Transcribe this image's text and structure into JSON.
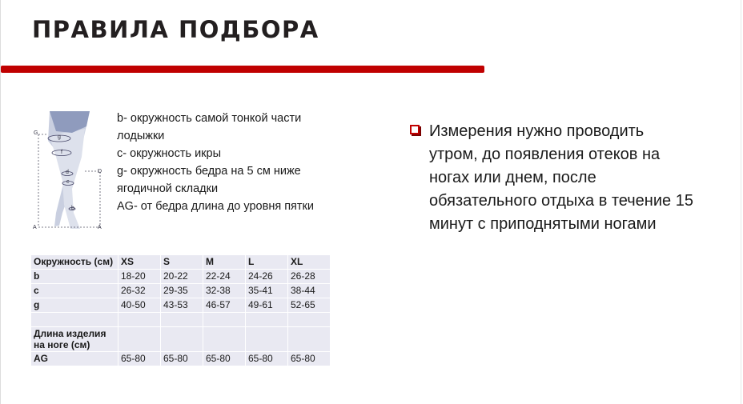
{
  "title": "ПРАВИЛА ПОДБОРА",
  "colors": {
    "accent": "#c00000",
    "table_bg": "#e9e9f2"
  },
  "figure": {
    "labels": [
      "G",
      "g",
      "f",
      "d",
      "D",
      "c",
      "b",
      "A",
      "A"
    ]
  },
  "legend": [
    "b- окружность самой тонкой части",
    "лодыжки",
    "c- окружность икры",
    "g- окружность бедра на 5 см ниже",
    "ягодичной складки",
    "AG- от бедра длина до уровня пятки"
  ],
  "note": {
    "icon": "square-bullet-icon",
    "lines": [
      "Измерения нужно проводить",
      "утром, до появления отеков на",
      "ногах или днем, после",
      "обязательного отдыха в течение 15",
      "минут с приподнятыми ногами"
    ]
  },
  "table": {
    "header": [
      "Окружность (см)",
      "XS",
      "S",
      "M",
      "L",
      "XL"
    ],
    "rows": [
      [
        "b",
        "18-20",
        "20-22",
        "22-24",
        "24-26",
        "26-28"
      ],
      [
        "c",
        "26-32",
        "29-35",
        "32-38",
        "35-41",
        "38-44"
      ],
      [
        "g",
        "40-50",
        "43-53",
        "46-57",
        "49-61",
        "52-65"
      ],
      [
        "",
        "",
        "",
        "",
        "",
        ""
      ],
      [
        "Длина изделия на ноге (см)",
        "",
        "",
        "",
        "",
        ""
      ],
      [
        "AG",
        "65-80",
        "65-80",
        "65-80",
        "65-80",
        "65-80"
      ]
    ]
  }
}
